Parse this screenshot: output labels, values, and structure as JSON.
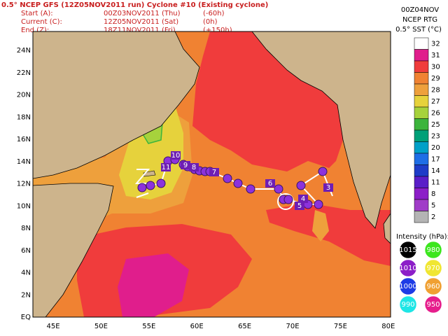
{
  "header": {
    "title": "0.5° NCEP GFS (12Z05NOV2011 run) Cyclone #10 (Existing cyclone)",
    "times": [
      {
        "label": "Start (A):",
        "time": "00Z03NOV2011 (Thu)",
        "offset": "(-60h)"
      },
      {
        "label": "Current (C):",
        "time": "12Z05NOV2011 (Sat)",
        "offset": "(0h)"
      },
      {
        "label": "End (Z):",
        "time": "18Z11NOV2011 (Fri)",
        "offset": "(+150h)"
      }
    ]
  },
  "sst": {
    "date": "00Z04NOV",
    "source": "NCEP RTG",
    "title": "0.5° SST (°C)",
    "colorbar": [
      {
        "label": "32",
        "color": "#ffffff"
      },
      {
        "label": "31",
        "color": "#e01e8c"
      },
      {
        "label": "30",
        "color": "#f03c3c"
      },
      {
        "label": "29",
        "color": "#f08232"
      },
      {
        "label": "28",
        "color": "#eea03c"
      },
      {
        "label": "27",
        "color": "#e6d23c"
      },
      {
        "label": "26",
        "color": "#a6d23c"
      },
      {
        "label": "25",
        "color": "#3cb43c"
      },
      {
        "label": "23",
        "color": "#00a078"
      },
      {
        "label": "20",
        "color": "#00a0c8"
      },
      {
        "label": "17",
        "color": "#1e6ee6"
      },
      {
        "label": "14",
        "color": "#1e3cc8"
      },
      {
        "label": "11",
        "color": "#5a1ec8"
      },
      {
        "label": "8",
        "color": "#8c1ec8"
      },
      {
        "label": "5",
        "color": "#a03cc8"
      },
      {
        "label": "2",
        "color": "#b4b4b4"
      }
    ]
  },
  "intensity": {
    "title": "Intensity (hPa):",
    "entries": [
      {
        "label": "1015",
        "color": "#000000"
      },
      {
        "label": "980",
        "color": "#3ce61e"
      },
      {
        "label": "1010",
        "color": "#8c1ec8"
      },
      {
        "label": "970",
        "color": "#f0e632"
      },
      {
        "label": "1000",
        "color": "#1e3ce6"
      },
      {
        "label": "960",
        "color": "#f0a032"
      },
      {
        "label": "990",
        "color": "#1ee6e6"
      },
      {
        "label": "950",
        "color": "#e61e8c"
      }
    ]
  },
  "map": {
    "lat_labels": [
      "24N",
      "22N",
      "20N",
      "18N",
      "16N",
      "14N",
      "12N",
      "10N",
      "8N",
      "6N",
      "4N",
      "2N",
      "EQ"
    ],
    "lon_labels": [
      "45E",
      "50E",
      "55E",
      "60E",
      "65E",
      "70E",
      "75E",
      "80E"
    ],
    "track_labels": [
      "10",
      "11",
      "9",
      "8",
      "7",
      "6",
      "4",
      "5",
      "3"
    ]
  }
}
